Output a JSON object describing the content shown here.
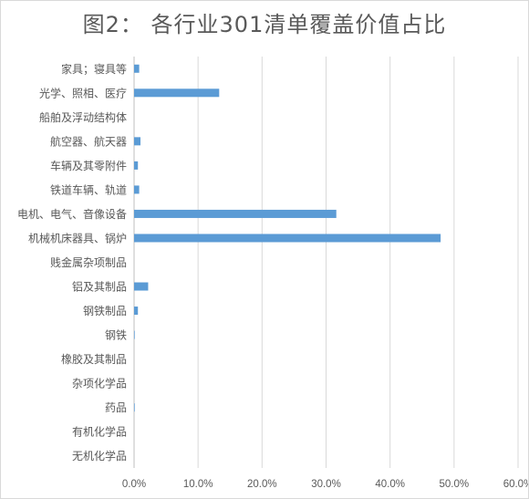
{
  "chart_data": {
    "type": "bar",
    "orientation": "horizontal",
    "title": "图2： 各行业301清单覆盖价值占比",
    "categories": [
      "家具；寝具等",
      "光学、照相、医疗",
      "船舶及浮动结构体",
      "航空器、航天器",
      "车辆及其零附件",
      "铁道车辆、轨道",
      "电机、电气、音像设备",
      "机械机床器具、锅炉",
      "贱金属杂项制品",
      "铝及其制品",
      "钢铁制品",
      "钢铁",
      "橡胶及其制品",
      "杂项化学品",
      "药品",
      "有机化学品",
      "无机化学品"
    ],
    "values": [
      0.8,
      13.3,
      0.0,
      1.0,
      0.6,
      0.8,
      31.6,
      47.9,
      0.0,
      2.2,
      0.6,
      0.1,
      0.0,
      0.0,
      0.1,
      0.0,
      0.0
    ],
    "xlim": [
      0,
      60
    ],
    "xticks": [
      "0.0%",
      "10.0%",
      "20.0%",
      "30.0%",
      "40.0%",
      "50.0%",
      "60.0%"
    ],
    "grid": "vertical",
    "bar_color": "#5b9bd5",
    "grid_color": "#d9d9d9"
  }
}
